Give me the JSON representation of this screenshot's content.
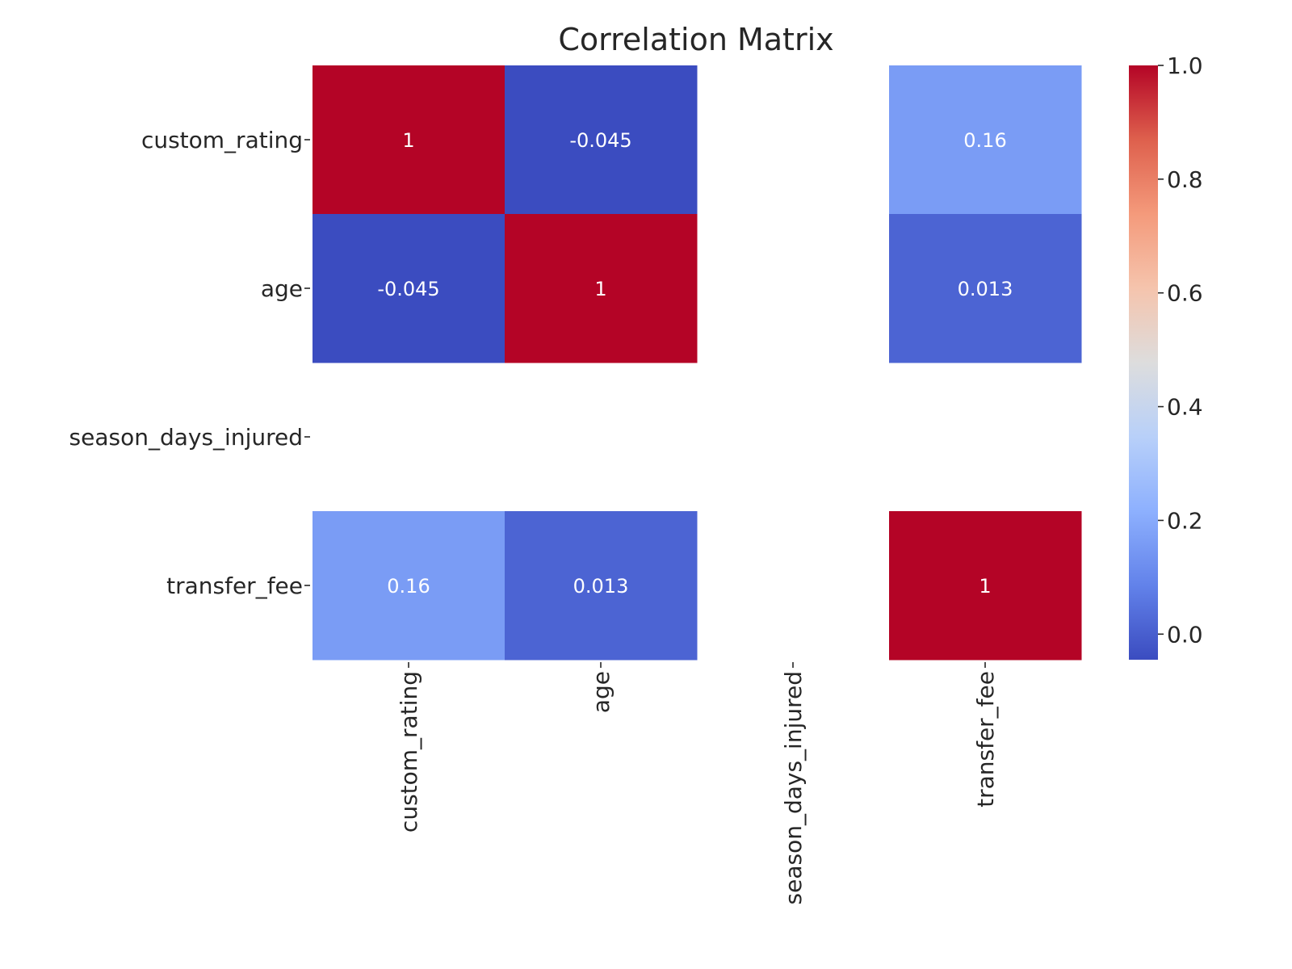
{
  "chart_data": {
    "type": "heatmap",
    "title": "Correlation Matrix",
    "row_labels": [
      "custom_rating",
      "age",
      "season_days_injured",
      "transfer_fee"
    ],
    "col_labels": [
      "custom_rating",
      "age",
      "season_days_injured",
      "transfer_fee"
    ],
    "values": [
      [
        1,
        -0.045,
        null,
        0.16
      ],
      [
        -0.045,
        1,
        null,
        0.013
      ],
      [
        null,
        null,
        null,
        null
      ],
      [
        0.16,
        0.013,
        null,
        1
      ]
    ],
    "annotations": [
      [
        "1",
        "-0.045",
        "",
        "0.16"
      ],
      [
        "-0.045",
        "1",
        "",
        "0.013"
      ],
      [
        "",
        "",
        "",
        ""
      ],
      [
        "0.16",
        "0.013",
        "",
        "1"
      ]
    ],
    "colormap": "coolwarm",
    "color_range": [
      -0.045,
      1.0
    ],
    "colorbar_ticks": [
      "0.0",
      "0.2",
      "0.4",
      "0.6",
      "0.8",
      "1.0"
    ],
    "colorbar_tick_values": [
      0.0,
      0.2,
      0.4,
      0.6,
      0.8,
      1.0
    ]
  }
}
